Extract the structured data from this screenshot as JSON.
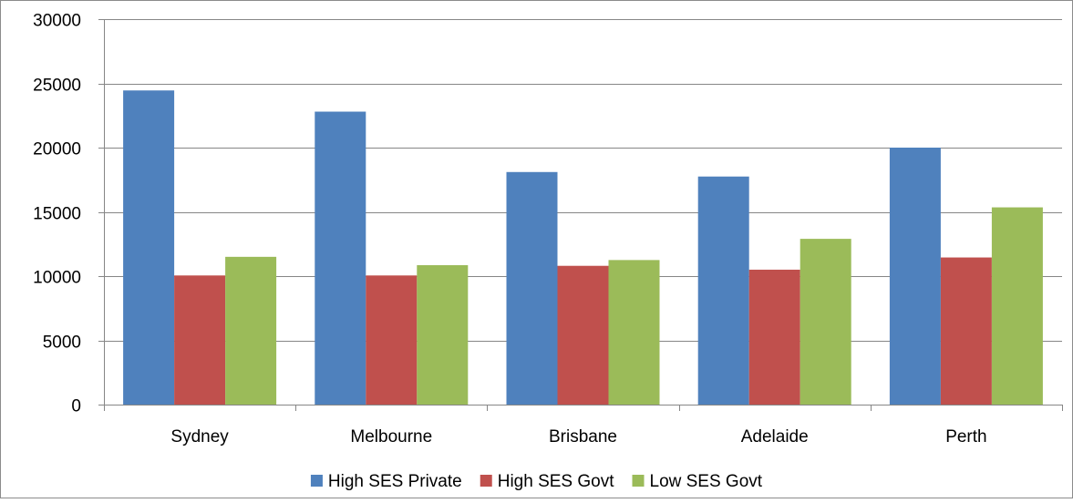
{
  "chart_data": {
    "type": "bar",
    "title": "",
    "xlabel": "",
    "ylabel": "",
    "categories": [
      "Sydney",
      "Melbourne",
      "Brisbane",
      "Adelaide",
      "Perth"
    ],
    "series": [
      {
        "name": "High SES Private",
        "color": "#4F81BD",
        "values": [
          24450,
          22800,
          18100,
          17750,
          20000
        ]
      },
      {
        "name": "High SES Govt",
        "color": "#C0504D",
        "values": [
          10050,
          10050,
          10800,
          10500,
          11450
        ]
      },
      {
        "name": "Low SES Govt",
        "color": "#9BBB59",
        "values": [
          11500,
          10850,
          11250,
          12900,
          15350
        ]
      }
    ],
    "ylim": [
      0,
      30000
    ],
    "yticks": [
      0,
      5000,
      10000,
      15000,
      20000,
      25000,
      30000
    ],
    "grid": true,
    "legend": "bottom"
  }
}
